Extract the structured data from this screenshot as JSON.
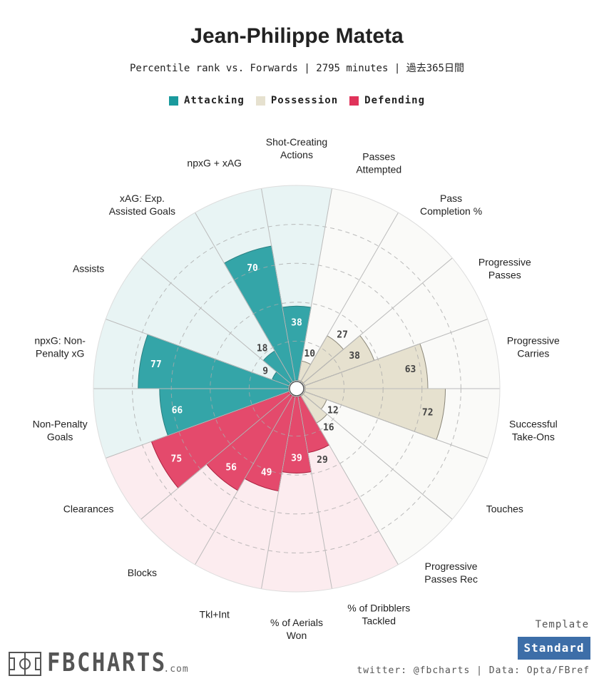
{
  "title": "Jean-Philippe Mateta",
  "subtitle": "Percentile rank vs. Forwards | 2795 minutes | 過去365日間",
  "legend": [
    {
      "label": "Attacking",
      "color": "#1a9a9d"
    },
    {
      "label": "Possession",
      "color": "#e6e1cf"
    },
    {
      "label": "Defending",
      "color": "#e0335a"
    }
  ],
  "chart_data": {
    "type": "polar-bar",
    "title": "Jean-Philippe Mateta",
    "scale": [
      0,
      100
    ],
    "gridlines": [
      20,
      40,
      60,
      80
    ],
    "categories": [
      {
        "label": "Shot-Creating\nActions",
        "value": 38,
        "group": "Attacking"
      },
      {
        "label": "Passes\nAttempted",
        "value": 10,
        "group": "Possession"
      },
      {
        "label": "Pass\nCompletion %",
        "value": 27,
        "group": "Possession"
      },
      {
        "label": "Progressive\nPasses",
        "value": 38,
        "group": "Possession"
      },
      {
        "label": "Progressive\nCarries",
        "value": 63,
        "group": "Possession"
      },
      {
        "label": "Successful\nTake-Ons",
        "value": 72,
        "group": "Possession"
      },
      {
        "label": "Touches",
        "value": 12,
        "group": "Possession"
      },
      {
        "label": "Progressive\nPasses Rec",
        "value": 16,
        "group": "Possession"
      },
      {
        "label": "% of Dribblers\nTackled",
        "value": 29,
        "group": "Defending"
      },
      {
        "label": "% of Aerials\nWon",
        "value": 39,
        "group": "Defending"
      },
      {
        "label": "Tkl+Int",
        "value": 49,
        "group": "Defending"
      },
      {
        "label": "Blocks",
        "value": 56,
        "group": "Defending"
      },
      {
        "label": "Clearances",
        "value": 75,
        "group": "Defending"
      },
      {
        "label": "Non-Penalty\nGoals",
        "value": 66,
        "group": "Attacking"
      },
      {
        "label": "npxG: Non-\nPenalty xG",
        "value": 77,
        "group": "Attacking"
      },
      {
        "label": "Assists",
        "value": 9,
        "group": "Attacking"
      },
      {
        "label": "xAG: Exp.\nAssisted Goals",
        "value": 18,
        "group": "Attacking"
      },
      {
        "label": "npxG + xAG",
        "value": 70,
        "group": "Attacking"
      }
    ]
  },
  "template": {
    "label": "Template",
    "value": "Standard"
  },
  "credits": "twitter: @fbcharts | Data: Opta/FBref",
  "logo": {
    "name": "FBCHARTS",
    "suffix": ".com"
  }
}
